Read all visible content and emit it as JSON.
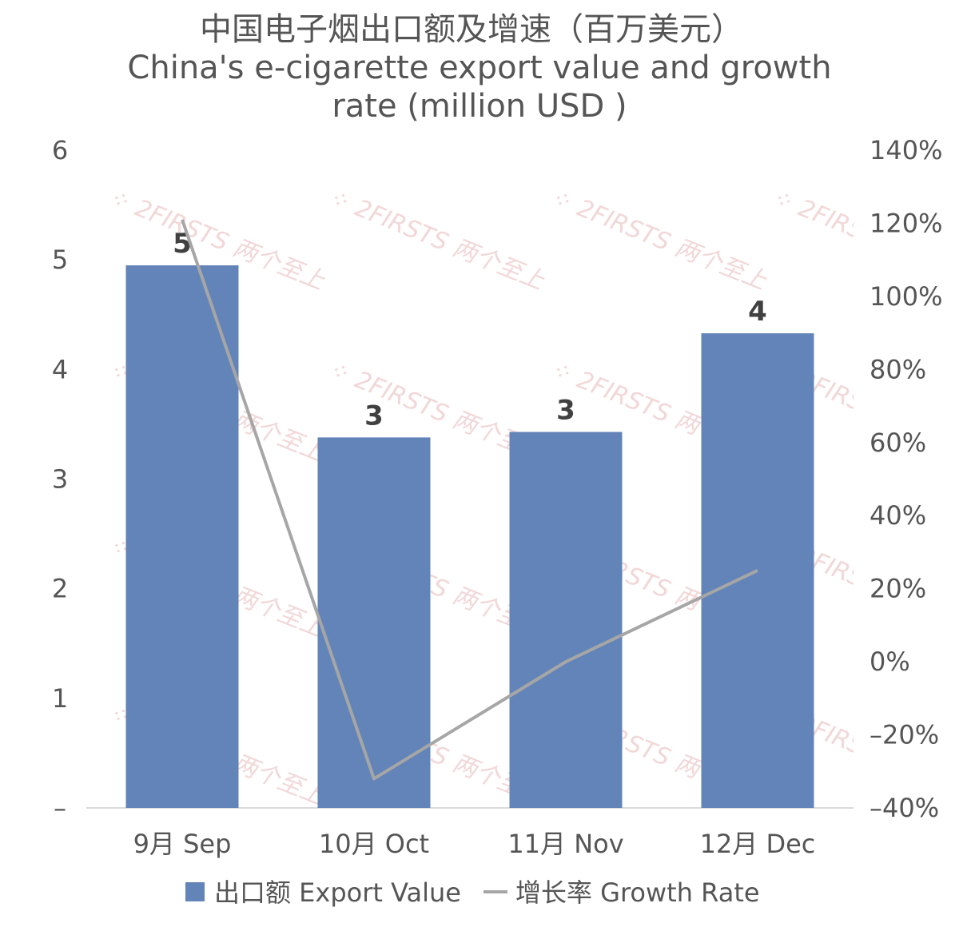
{
  "chart_data": {
    "type": "bar",
    "title": [
      "中国电子烟出口额及增速（百万美元）",
      "China's e-cigarette export value and growth",
      "rate (million USD )"
    ],
    "categories": [
      "9月 Sep",
      "10月 Oct",
      "11月 Nov",
      "12月 Dec"
    ],
    "series": [
      {
        "name": "出口额 Export Value",
        "type": "bar",
        "axis": "left",
        "color": "#6284b8",
        "values": [
          4.95,
          3.38,
          3.43,
          4.33
        ],
        "labels": [
          "5",
          "3",
          "3",
          "4"
        ]
      },
      {
        "name": "增长率 Growth Rate",
        "type": "line",
        "axis": "right",
        "color": "#a6a6a6",
        "values": [
          121,
          -32,
          0,
          25
        ]
      }
    ],
    "y_left": {
      "ylim": [
        0,
        6
      ],
      "ticks": [
        0,
        1,
        2,
        3,
        4,
        5,
        6
      ],
      "tick_labels": [
        "–",
        "1",
        "2",
        "3",
        "4",
        "5",
        "6"
      ]
    },
    "y_right": {
      "ylim": [
        -40,
        140
      ],
      "ticks": [
        -40,
        -20,
        0,
        20,
        40,
        60,
        80,
        100,
        120,
        140
      ],
      "tick_labels": [
        "–40%",
        "–20%",
        "0%",
        "20%",
        "40%",
        "60%",
        "80%",
        "100%",
        "120%",
        "140%"
      ]
    },
    "grid": false,
    "legend_position": "bottom",
    "watermark": "2FIRSTS 两个至上"
  }
}
